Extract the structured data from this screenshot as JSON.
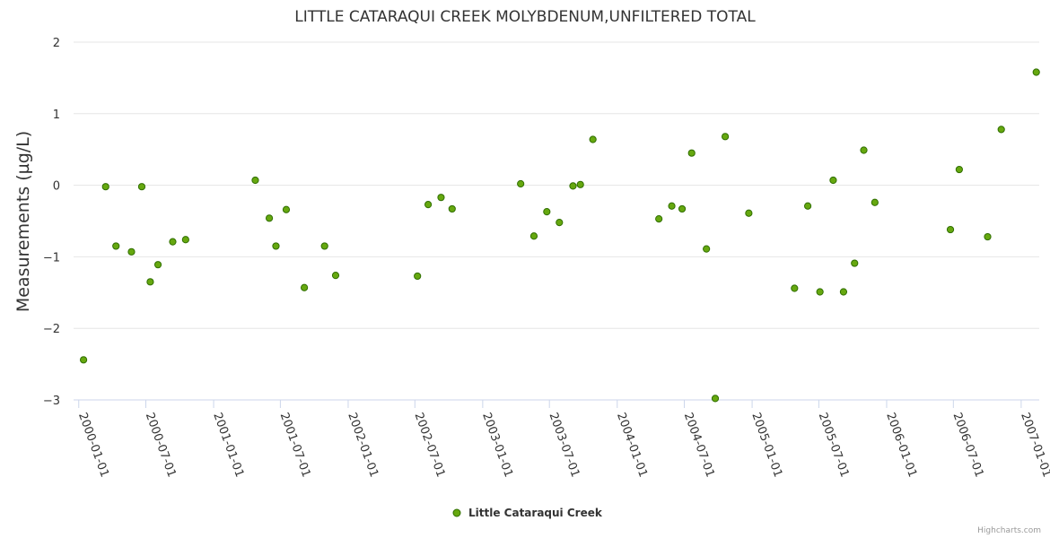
{
  "chart_data": {
    "type": "scatter",
    "title": "LITTLE CATARAQUI CREEK MOLYBDENUM,UNFILTERED TOTAL",
    "xlabel": "",
    "ylabel": "Measurements (µg/L)",
    "ylim": [
      -3,
      2
    ],
    "yticks": [
      2,
      1,
      0,
      -1,
      -2,
      -3
    ],
    "ytick_labels": [
      "2",
      "1",
      "0",
      "−1",
      "−2",
      "−3"
    ],
    "xlim": [
      "1999-12-18",
      "2007-02-19"
    ],
    "xticks": [
      "2000-01-01",
      "2000-07-01",
      "2001-01-01",
      "2001-07-01",
      "2002-01-01",
      "2002-07-01",
      "2003-01-01",
      "2003-07-01",
      "2004-01-01",
      "2004-07-01",
      "2005-01-01",
      "2005-07-01",
      "2006-01-01",
      "2006-07-01",
      "2007-01-01"
    ],
    "grid": true,
    "legend_position": "bottom-center",
    "colors": {
      "point_fill": "#66a80f",
      "point_stroke": "#2f6e00",
      "grid": "#e6e6e6",
      "axis": "#ccd6eb"
    },
    "series": [
      {
        "name": "Little Cataraqui Creek",
        "points": [
          {
            "x": "2000-01-14",
            "y": -2.44
          },
          {
            "x": "2000-03-14",
            "y": -0.02
          },
          {
            "x": "2000-04-11",
            "y": -0.85
          },
          {
            "x": "2000-05-23",
            "y": -0.93
          },
          {
            "x": "2000-06-20",
            "y": -0.02
          },
          {
            "x": "2000-07-13",
            "y": -1.35
          },
          {
            "x": "2000-08-03",
            "y": -1.11
          },
          {
            "x": "2000-09-12",
            "y": -0.79
          },
          {
            "x": "2000-10-17",
            "y": -0.76
          },
          {
            "x": "2001-04-24",
            "y": 0.07
          },
          {
            "x": "2001-06-01",
            "y": -0.46
          },
          {
            "x": "2001-06-19",
            "y": -0.85
          },
          {
            "x": "2001-07-17",
            "y": -0.34
          },
          {
            "x": "2001-09-04",
            "y": -1.43
          },
          {
            "x": "2001-10-29",
            "y": -0.85
          },
          {
            "x": "2001-11-28",
            "y": -1.26
          },
          {
            "x": "2002-07-08",
            "y": -1.27
          },
          {
            "x": "2002-08-06",
            "y": -0.27
          },
          {
            "x": "2002-09-10",
            "y": -0.17
          },
          {
            "x": "2002-10-10",
            "y": -0.33
          },
          {
            "x": "2003-04-14",
            "y": 0.02
          },
          {
            "x": "2003-05-20",
            "y": -0.71
          },
          {
            "x": "2003-06-24",
            "y": -0.37
          },
          {
            "x": "2003-07-28",
            "y": -0.52
          },
          {
            "x": "2003-09-03",
            "y": -0.01
          },
          {
            "x": "2003-09-23",
            "y": 0.01
          },
          {
            "x": "2003-10-27",
            "y": 0.64
          },
          {
            "x": "2004-04-23",
            "y": -0.47
          },
          {
            "x": "2004-05-28",
            "y": -0.29
          },
          {
            "x": "2004-06-25",
            "y": -0.33
          },
          {
            "x": "2004-07-21",
            "y": 0.45
          },
          {
            "x": "2004-08-30",
            "y": -0.89
          },
          {
            "x": "2004-09-23",
            "y": -2.98
          },
          {
            "x": "2004-10-20",
            "y": 0.68
          },
          {
            "x": "2004-12-23",
            "y": -0.39
          },
          {
            "x": "2005-04-26",
            "y": -1.44
          },
          {
            "x": "2005-06-01",
            "y": -0.29
          },
          {
            "x": "2005-07-04",
            "y": -1.49
          },
          {
            "x": "2005-08-09",
            "y": 0.07
          },
          {
            "x": "2005-09-06",
            "y": -1.49
          },
          {
            "x": "2005-10-06",
            "y": -1.09
          },
          {
            "x": "2005-10-31",
            "y": 0.49
          },
          {
            "x": "2005-11-30",
            "y": -0.24
          },
          {
            "x": "2006-06-23",
            "y": -0.62
          },
          {
            "x": "2006-07-17",
            "y": 0.22
          },
          {
            "x": "2006-10-02",
            "y": -0.72
          },
          {
            "x": "2006-11-08",
            "y": 0.78
          },
          {
            "x": "2007-02-11",
            "y": 1.58
          }
        ]
      }
    ],
    "credit": "Highcharts.com"
  }
}
